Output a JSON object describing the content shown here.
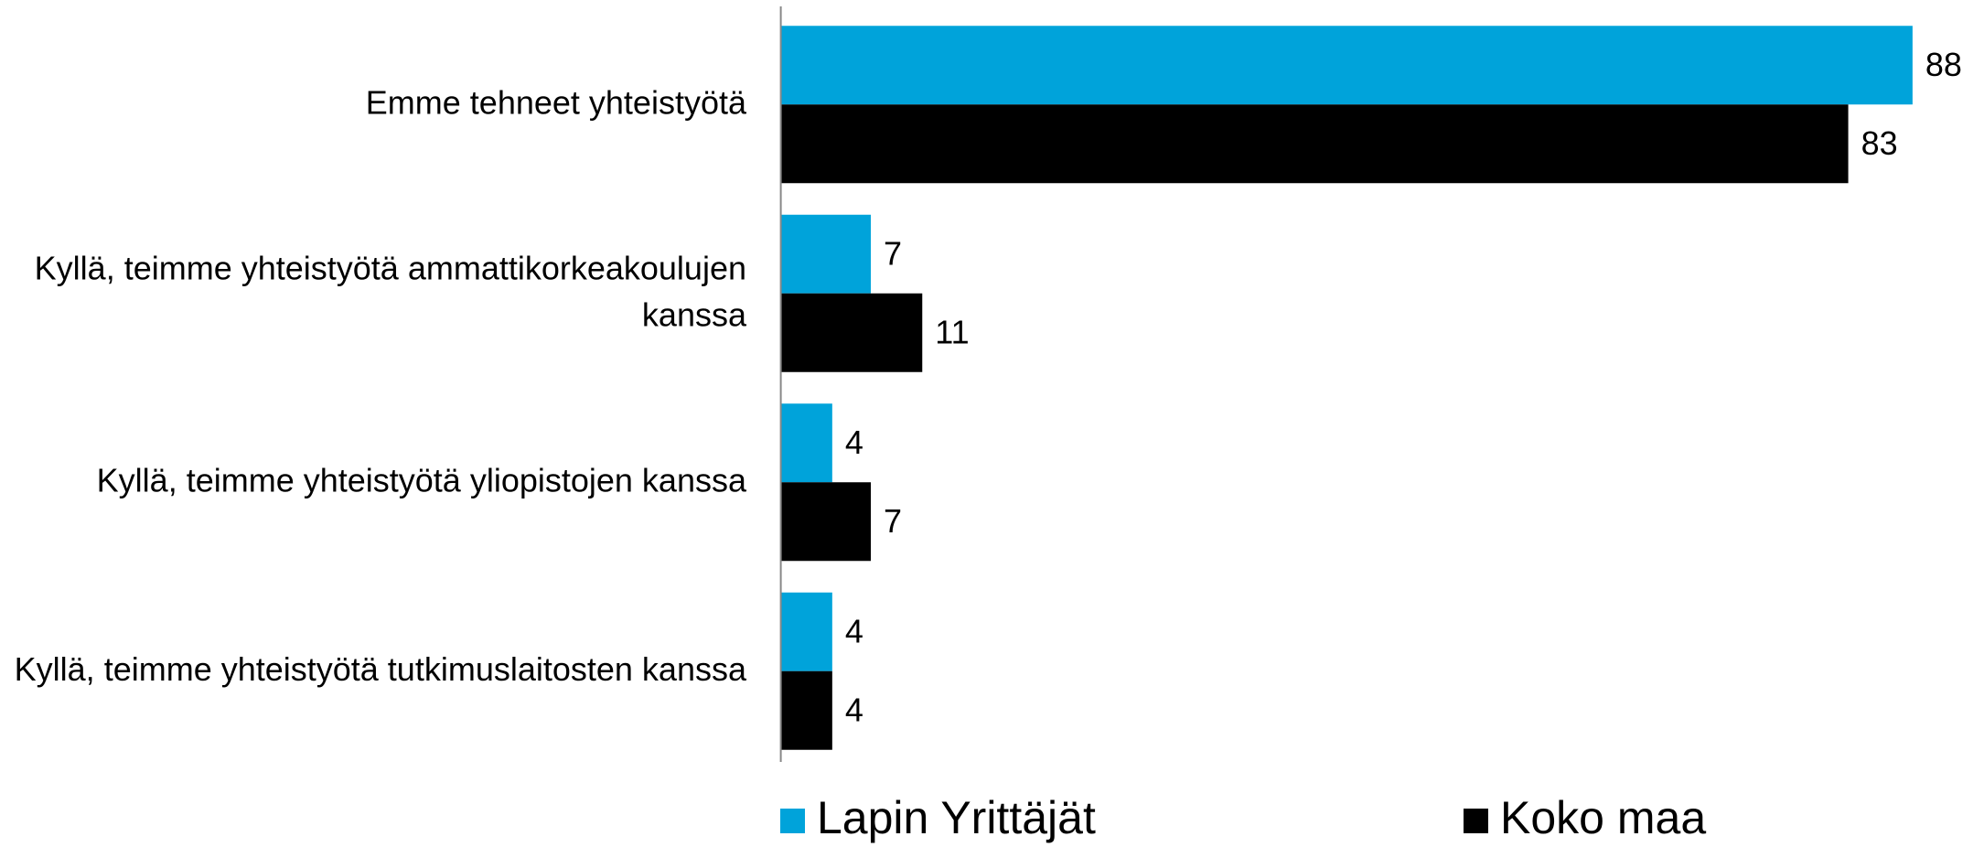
{
  "chart_data": {
    "type": "barh",
    "categories": [
      "Emme tehneet yhteistyötä",
      "Kyllä, teimme yhteistyötä ammattikorkeakoulujen kanssa",
      "Kyllä, teimme yhteistyötä yliopistojen kanssa",
      "Kyllä, teimme yhteistyötä tutkimuslaitosten kanssa"
    ],
    "series": [
      {
        "name": "Lapin Yrittäjät",
        "color": "#00a3da",
        "values": [
          88,
          7,
          4,
          4
        ]
      },
      {
        "name": "Koko maa",
        "color": "#000000",
        "values": [
          83,
          11,
          7,
          4
        ]
      }
    ],
    "xlim": [
      0,
      90
    ],
    "legend": "bottom"
  }
}
